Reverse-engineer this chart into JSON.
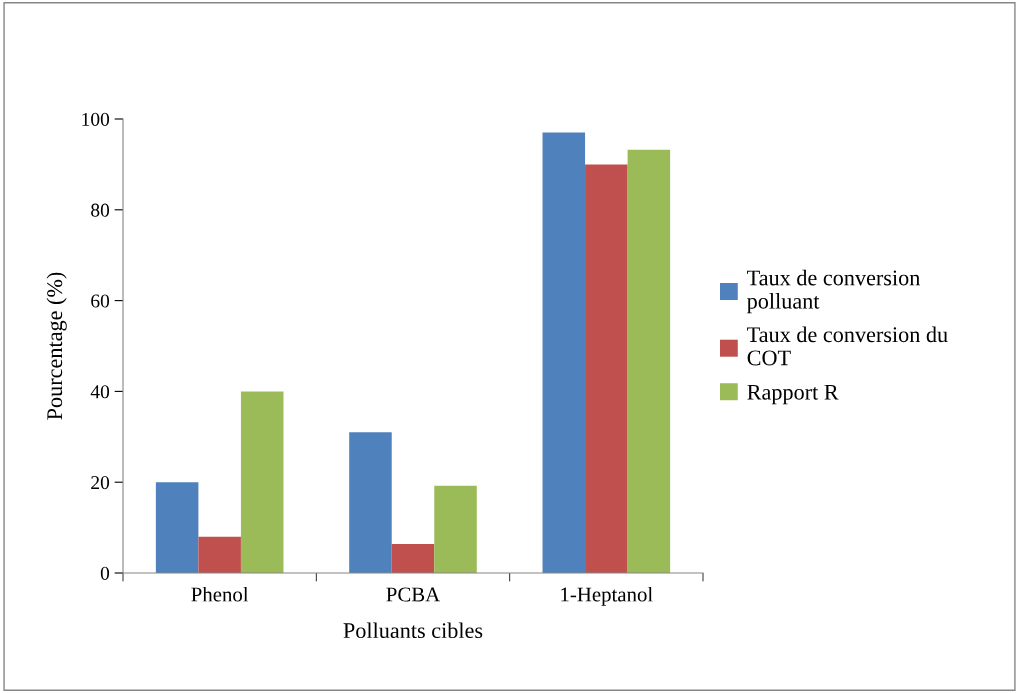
{
  "chart_data": {
    "type": "bar",
    "xlabel": "Polluants cibles",
    "ylabel": "Pourcentage (%)",
    "categories": [
      "Phenol",
      "PCBA",
      "1-Heptanol"
    ],
    "series": [
      {
        "name": "Taux de conversion\npolluant",
        "color": "#4f81bd",
        "values": [
          20,
          31,
          97
        ]
      },
      {
        "name": "Taux de conversion du\nCOT",
        "color": "#c0504d",
        "values": [
          8,
          6.4,
          90
        ]
      },
      {
        "name": "Rapport R",
        "color": "#9bbb59",
        "values": [
          40,
          19.2,
          93.2
        ]
      }
    ],
    "ylim": [
      0,
      100
    ],
    "yticks": [
      0,
      20,
      40,
      60,
      80,
      100
    ],
    "grid": false,
    "legend": "right"
  }
}
